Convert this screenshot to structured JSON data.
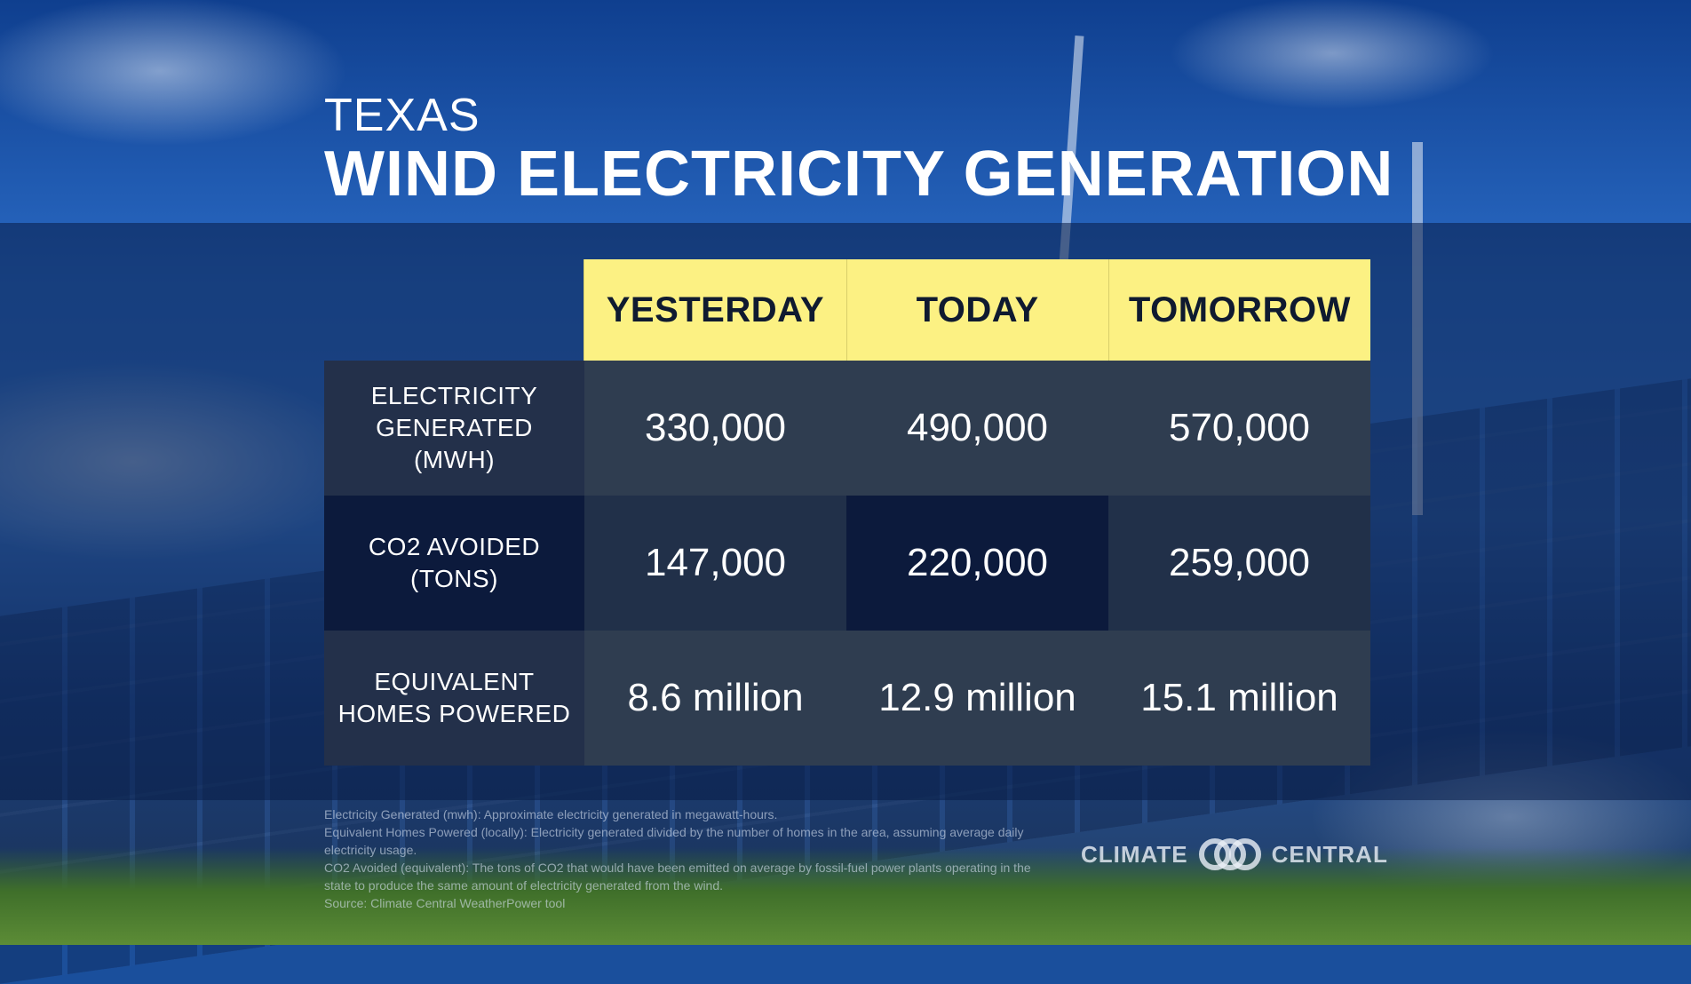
{
  "header": {
    "subtitle": "TEXAS",
    "title": "WIND ELECTRICITY GENERATION"
  },
  "table": {
    "columns": [
      "YESTERDAY",
      "TODAY",
      "TOMORROW"
    ],
    "rows": [
      {
        "label": "ELECTRICITY GENERATED (MWH)",
        "values": [
          "330,000",
          "490,000",
          "570,000"
        ]
      },
      {
        "label": "CO2 AVOIDED (TONS)",
        "values": [
          "147,000",
          "220,000",
          "259,000"
        ]
      },
      {
        "label": "EQUIVALENT HOMES POWERED",
        "values": [
          "8.6 million",
          "12.9 million",
          "15.1 million"
        ]
      }
    ]
  },
  "footnotes": [
    "Electricity Generated (mwh): Approximate electricity generated in megawatt-hours.",
    "Equivalent Homes Powered (locally): Electricity generated divided by the number of homes in the area, assuming average daily electricity usage.",
    "CO2 Avoided (equivalent): The tons of CO2 that would have been emitted on average by fossil-fuel power plants operating in the state to produce the same amount of electricity generated from the wind.",
    "Source: Climate Central WeatherPower tool"
  ],
  "logo": {
    "left_text": "CLIMATE",
    "right_text": "CENTRAL",
    "icon": "climate-central-rings-icon"
  },
  "colors": {
    "header_fill": "#fcf183",
    "dark_row": "#0c1a3c",
    "mid_row": "#2f3d50"
  }
}
